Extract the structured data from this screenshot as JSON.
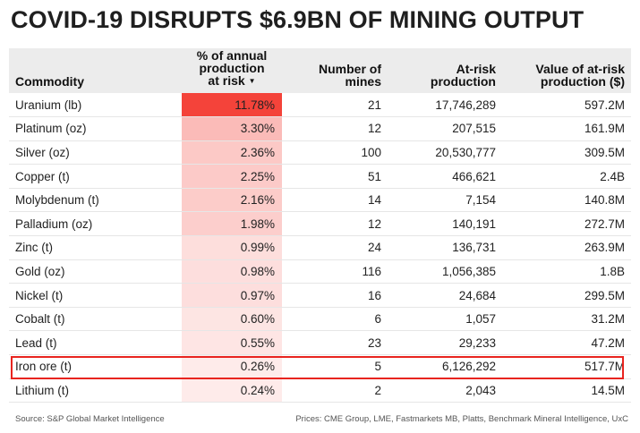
{
  "title": "COVID-19 DISRUPTS $6.9BN OF MINING OUTPUT",
  "chart_data": {
    "type": "table",
    "columns": [
      "Commodity",
      "% of annual production at risk",
      "Number of mines",
      "At-risk production",
      "Value of at-risk production ($)"
    ],
    "header_lines": [
      [
        "Commodity"
      ],
      [
        "% of annual",
        "production",
        "at risk"
      ],
      [
        "Number of",
        "mines"
      ],
      [
        "At-risk",
        "production"
      ],
      [
        "Value of at-risk",
        "production ($)"
      ]
    ],
    "sort_indicator": "▼",
    "rows": [
      {
        "commodity": "Uranium (lb)",
        "pct": "11.78%",
        "pct_value": 11.78,
        "mines": "21",
        "production": "17,746,289",
        "value": "597.2M"
      },
      {
        "commodity": "Platinum (oz)",
        "pct": "3.30%",
        "pct_value": 3.3,
        "mines": "12",
        "production": "207,515",
        "value": "161.9M"
      },
      {
        "commodity": "Silver (oz)",
        "pct": "2.36%",
        "pct_value": 2.36,
        "mines": "100",
        "production": "20,530,777",
        "value": "309.5M"
      },
      {
        "commodity": "Copper (t)",
        "pct": "2.25%",
        "pct_value": 2.25,
        "mines": "51",
        "production": "466,621",
        "value": "2.4B"
      },
      {
        "commodity": "Molybdenum (t)",
        "pct": "2.16%",
        "pct_value": 2.16,
        "mines": "14",
        "production": "7,154",
        "value": "140.8M"
      },
      {
        "commodity": "Palladium (oz)",
        "pct": "1.98%",
        "pct_value": 1.98,
        "mines": "12",
        "production": "140,191",
        "value": "272.7M"
      },
      {
        "commodity": "Zinc (t)",
        "pct": "0.99%",
        "pct_value": 0.99,
        "mines": "24",
        "production": "136,731",
        "value": "263.9M"
      },
      {
        "commodity": "Gold (oz)",
        "pct": "0.98%",
        "pct_value": 0.98,
        "mines": "116",
        "production": "1,056,385",
        "value": "1.8B"
      },
      {
        "commodity": "Nickel (t)",
        "pct": "0.97%",
        "pct_value": 0.97,
        "mines": "16",
        "production": "24,684",
        "value": "299.5M"
      },
      {
        "commodity": "Cobalt (t)",
        "pct": "0.60%",
        "pct_value": 0.6,
        "mines": "6",
        "production": "1,057",
        "value": "31.2M"
      },
      {
        "commodity": "Lead (t)",
        "pct": "0.55%",
        "pct_value": 0.55,
        "mines": "23",
        "production": "29,233",
        "value": "47.2M"
      },
      {
        "commodity": "Iron ore (t)",
        "pct": "0.26%",
        "pct_value": 0.26,
        "mines": "5",
        "production": "6,126,292",
        "value": "517.7M",
        "highlighted": true
      },
      {
        "commodity": "Lithium (t)",
        "pct": "0.24%",
        "pct_value": 0.24,
        "mines": "2",
        "production": "2,043",
        "value": "14.5M"
      }
    ],
    "heat_color_max": "#f4433a",
    "heat_color_min": "#ffffff",
    "header_bg": "#ececec",
    "highlight_color": "#e8241f"
  },
  "footer": {
    "source": "Source: S&P Global Market Intelligence",
    "prices": "Prices: CME Group, LME, Fastmarkets MB, Platts, Benchmark Mineral Intelligence, UxC"
  }
}
